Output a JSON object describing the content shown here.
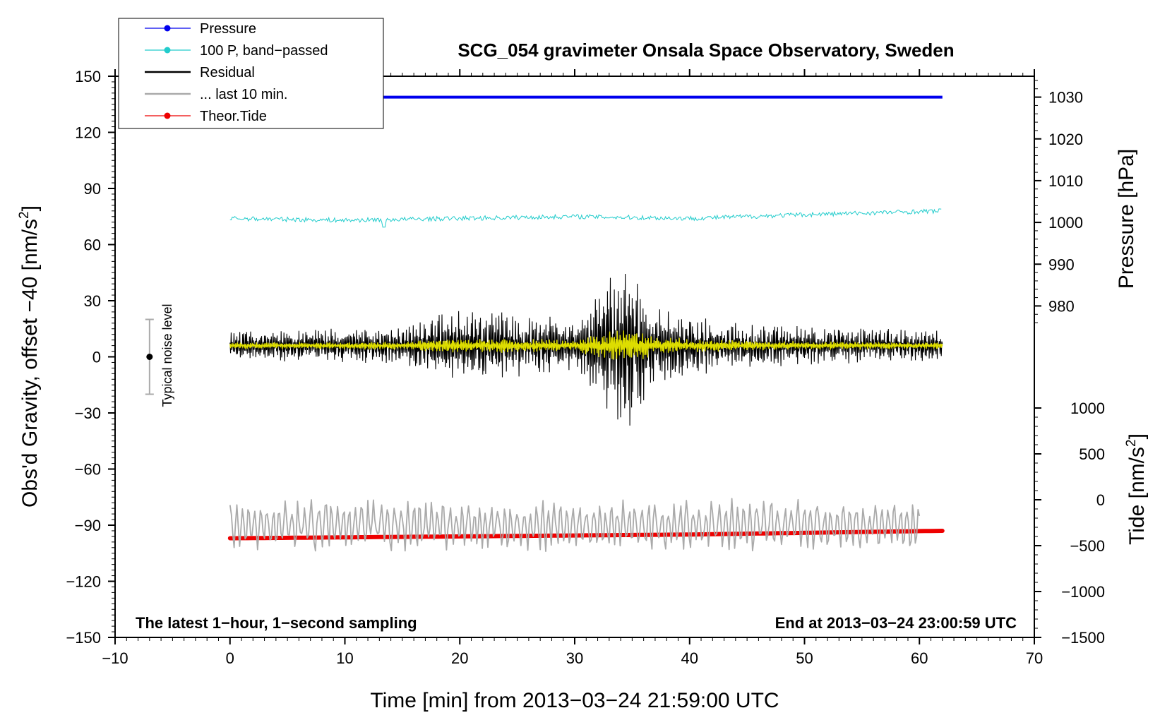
{
  "chart_data": {
    "type": "line",
    "title": "SCG_054 gravimeter Onsala Space Observatory, Sweden",
    "xlabel": "Time [min] from 2013−03−24 21:59:00 UTC",
    "xlim": [
      -10,
      70
    ],
    "xticks": [
      -10,
      0,
      10,
      20,
      30,
      40,
      50,
      60,
      70
    ],
    "xtick_labels": [
      "−10",
      "0",
      "10",
      "20",
      "30",
      "40",
      "50",
      "60",
      "70"
    ],
    "left_axis": {
      "label_main": "Obs'd Gravity, offset −40 [nm/s",
      "label_sup": "2",
      "label_end": "]",
      "ylim": [
        -150,
        150
      ],
      "ticks": [
        -150,
        -120,
        -90,
        -60,
        -30,
        0,
        30,
        60,
        90,
        120,
        150
      ],
      "tick_labels": [
        "−150",
        "−120",
        "−90",
        "−60",
        "−30",
        "0",
        "30",
        "60",
        "90",
        "120",
        "150"
      ]
    },
    "pressure_axis": {
      "label": "Pressure [hPa]",
      "range": [
        975,
        1035
      ],
      "ticks": [
        980,
        990,
        1000,
        1010,
        1020,
        1030
      ],
      "tick_labels": [
        "980",
        "990",
        "1000",
        "1010",
        "1020",
        "1030"
      ]
    },
    "tide_axis": {
      "label_main": "Tide [nm/s",
      "label_sup": "2",
      "label_end": "]",
      "range": [
        -1500,
        1000
      ],
      "ticks": [
        -1500,
        -1000,
        -500,
        0,
        500,
        1000
      ],
      "tick_labels": [
        "−1500",
        "−1000",
        "−500",
        "0",
        "500",
        "1000"
      ]
    },
    "series": [
      {
        "name": "Pressure",
        "color": "#0000ee",
        "axis": "pressure",
        "x": [
          0,
          62
        ],
        "values": [
          1030,
          1030
        ]
      },
      {
        "name": "100 P, band−passed",
        "color": "#22cccc",
        "axis": "left",
        "x": [
          0,
          10,
          20,
          30,
          40,
          50,
          62
        ],
        "values": [
          74,
          73,
          74,
          75,
          74,
          76,
          78
        ]
      },
      {
        "name": "Residual",
        "color": "#000000",
        "axis": "left",
        "x": [
          0,
          15,
          19,
          25,
          30,
          34.5,
          37,
          45,
          55,
          62
        ],
        "values": [
          6,
          6,
          6,
          6,
          6,
          6,
          6,
          6,
          6,
          6
        ],
        "amplitude": [
          8,
          10,
          20,
          18,
          14,
          50,
          22,
          12,
          10,
          8
        ]
      },
      {
        "name": "... last 10 min.",
        "color": "#aaaaaa",
        "axis": "left",
        "x": [
          0,
          60
        ],
        "values": [
          -90,
          -90
        ],
        "amplitude": [
          10,
          10
        ]
      },
      {
        "name": "Theor.Tide",
        "color": "#ee0000",
        "axis": "left",
        "x": [
          0,
          20,
          40,
          62
        ],
        "values": [
          -97,
          -96,
          -95,
          -93
        ]
      }
    ],
    "filtered_residual": {
      "color": "#dddd00",
      "x": [
        0,
        30,
        62
      ],
      "values": [
        6,
        6,
        6
      ]
    },
    "noise_level": {
      "label": "Typical noise level",
      "x": -7,
      "center": 0,
      "range": [
        -20,
        20
      ]
    },
    "legend": [
      {
        "label": "Pressure",
        "color": "#0000ee",
        "marker": true
      },
      {
        "label": "100 P, band−passed",
        "color": "#22cccc",
        "marker": true
      },
      {
        "label": "Residual",
        "color": "#000000",
        "marker": false
      },
      {
        "label": "... last 10 min.",
        "color": "#aaaaaa",
        "marker": false
      },
      {
        "label": "Theor.Tide",
        "color": "#ee0000",
        "marker": true
      }
    ],
    "annotations": {
      "bottom_left": "The latest 1−hour, 1−second sampling",
      "bottom_right": "End at 2013−03−24 23:00:59 UTC"
    }
  }
}
